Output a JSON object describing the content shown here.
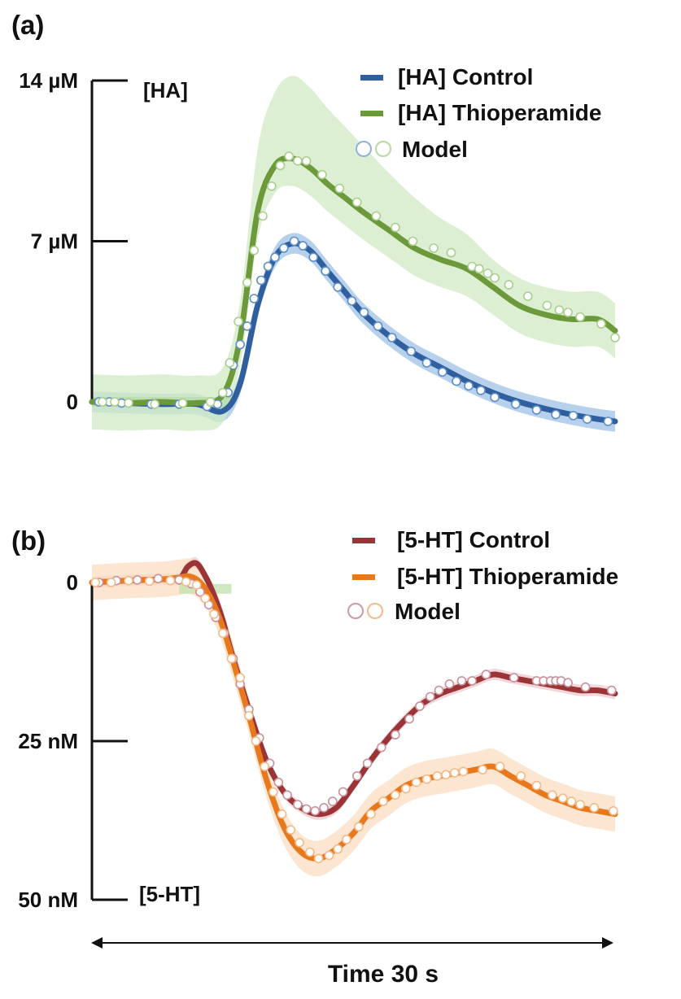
{
  "chart_data": [
    {
      "type": "line",
      "panel_label": "(a)",
      "ylabel": "[HA]",
      "yticks": [
        {
          "value": 14,
          "label": "14 µM"
        },
        {
          "value": 7,
          "label": "7 µM"
        },
        {
          "value": 0,
          "label": "0"
        }
      ],
      "ylim": [
        -1,
        14
      ],
      "xlim": [
        0,
        30
      ],
      "stim_bar": {
        "x": [
          0,
          8
        ],
        "y": 0,
        "color": "#b9dca6"
      },
      "legend": {
        "position": "top-right",
        "entries": [
          "[HA] Control",
          "[HA] Thioperamide",
          "Model"
        ]
      },
      "series": [
        {
          "name": "[HA] Control",
          "color": "#2f5f9e",
          "band_color": "#9fc1e6",
          "x": [
            0,
            2,
            4,
            6,
            7.5,
            8.5,
            9.5,
            10.5,
            11.5,
            12.5,
            13.5,
            14.5,
            15.5,
            17,
            18.5,
            20,
            21.5,
            23,
            24.5,
            26,
            27.5,
            29,
            30
          ],
          "y": [
            0,
            -0.05,
            -0.1,
            -0.1,
            -0.4,
            0.8,
            4.2,
            6.3,
            6.9,
            6.6,
            5.7,
            4.8,
            3.9,
            2.9,
            2.1,
            1.5,
            0.9,
            0.4,
            0,
            -0.3,
            -0.55,
            -0.75,
            -0.85
          ],
          "band_halfwidth": 0.45
        },
        {
          "name": "[HA] Thioperamide",
          "color": "#6c9a3a",
          "band_color": "#d2eac4",
          "x": [
            0,
            2,
            4,
            6,
            7.5,
            8.5,
            9.5,
            10.5,
            11.5,
            12.5,
            13.5,
            14.5,
            15.5,
            17,
            18.5,
            20,
            21.5,
            23,
            24.5,
            26,
            27.5,
            29,
            30
          ],
          "y": [
            0,
            -0.05,
            0,
            -0.05,
            0.3,
            2.8,
            8.3,
            10.3,
            10.6,
            10.2,
            9.5,
            8.9,
            8.3,
            7.5,
            6.7,
            6.2,
            5.8,
            5.0,
            4.2,
            3.8,
            3.6,
            3.6,
            3.1
          ],
          "band_halfwidth": 1.2,
          "band_top_extra": [
            0,
            0,
            0,
            0,
            0,
            0.4,
            1.5,
            2.0,
            2.4,
            2.3,
            2.1,
            1.9,
            1.7,
            1.3,
            1.0,
            0.6,
            0.3,
            0,
            0,
            0,
            0,
            0,
            0
          ]
        }
      ],
      "model_points": [
        {
          "series": "[HA] Control",
          "stroke": "#5d8ec8",
          "x": [
            0.4,
            1,
            1.7,
            3.4,
            5,
            6.6,
            7.2,
            7.8,
            8.1,
            8.5,
            8.9,
            9.3,
            9.7,
            10.1,
            10.5,
            11.0,
            11.6,
            12.1,
            12.7,
            13.4,
            14.1,
            14.9,
            15.6,
            16.4,
            17.2,
            18.3,
            19.2,
            20.1,
            20.9,
            21.6,
            22.3,
            23.1,
            24.3,
            25.5,
            26.6,
            27.6,
            28.4,
            29.6
          ],
          "y": [
            0,
            0,
            -0.05,
            -0.1,
            -0.1,
            -0.2,
            -0.1,
            0.4,
            1.6,
            2.5,
            3.3,
            4.5,
            5.3,
            5.9,
            6.3,
            6.7,
            7.0,
            6.8,
            6.3,
            5.7,
            5.0,
            4.4,
            3.9,
            3.3,
            2.8,
            2.2,
            1.7,
            1.3,
            0.9,
            0.7,
            0.5,
            0.2,
            -0.1,
            -0.35,
            -0.55,
            -0.6,
            -0.75,
            -0.85
          ]
        },
        {
          "series": "[HA] Thioperamide",
          "stroke": "#a9cf8f",
          "x": [
            0.6,
            1.3,
            2.1,
            3.6,
            5.2,
            6.8,
            7.5,
            7.9,
            8.4,
            8.9,
            9.3,
            9.8,
            10.3,
            10.8,
            11.3,
            11.8,
            12.3,
            13.2,
            14.2,
            15.2,
            16.3,
            17.4,
            18.4,
            19.6,
            20.6,
            21.8,
            22.2,
            22.7,
            23.1,
            23.9,
            25.0,
            26.1,
            26.8,
            27.3,
            28.0,
            29.2,
            30.0
          ],
          "y": [
            0,
            0,
            -0.05,
            -0.1,
            -0.05,
            0,
            0.4,
            1.7,
            3.5,
            5.2,
            6.6,
            8.1,
            9.4,
            10.3,
            10.7,
            10.5,
            10.5,
            9.9,
            9.3,
            8.7,
            8.1,
            7.6,
            7.0,
            6.7,
            6.5,
            5.9,
            5.8,
            5.6,
            5.4,
            5.1,
            4.6,
            4.2,
            4.0,
            3.9,
            3.7,
            3.4,
            2.8
          ]
        }
      ]
    },
    {
      "type": "line",
      "panel_label": "(b)",
      "ylabel": "[5-HT]",
      "yticks": [
        {
          "value": 0,
          "label": "0"
        },
        {
          "value": 25,
          "label": "25 nM"
        },
        {
          "value": 50,
          "label": "50 nM"
        }
      ],
      "ylim": [
        -3,
        50
      ],
      "y_inverted": true,
      "xlim": [
        0,
        30
      ],
      "stim_bar": {
        "x": [
          5,
          8
        ],
        "y": 1,
        "color": "#c4e2b2"
      },
      "legend": {
        "position": "top-right",
        "entries": [
          "[5-HT] Control",
          "[5-HT] Thioperamide",
          "Model"
        ]
      },
      "series": [
        {
          "name": "[5-HT] Control",
          "color": "#9b3437",
          "band_color": "#ecc9ce",
          "x": [
            0,
            2,
            4,
            5,
            5.5,
            6,
            6.5,
            7,
            7.5,
            8,
            9,
            10,
            11,
            12,
            13,
            14,
            15,
            16,
            17,
            18,
            19,
            20,
            21,
            22,
            23,
            24,
            25,
            26,
            27,
            28,
            29,
            30
          ],
          "y": [
            0,
            -0.3,
            -0.5,
            -0.6,
            -2.5,
            -3.0,
            -1.0,
            2.0,
            6.0,
            11.0,
            20.0,
            28.0,
            33.0,
            35.5,
            36.5,
            35.5,
            32.0,
            28.0,
            24.5,
            21.5,
            19.0,
            17.5,
            16.5,
            15.5,
            14.5,
            15.0,
            15.5,
            16.0,
            16.5,
            17.0,
            17.0,
            17.5
          ],
          "band_halfwidth": 0.9
        },
        {
          "name": "[5-HT] Thioperamide",
          "color": "#e8781c",
          "band_color": "#fbdcc2",
          "x": [
            0,
            2,
            4,
            5,
            5.5,
            6,
            6.5,
            7,
            7.5,
            8,
            9,
            10,
            11,
            12,
            13,
            14,
            15,
            16,
            17,
            18,
            19,
            20,
            21,
            22,
            23,
            24,
            25,
            26,
            27,
            28,
            29,
            30
          ],
          "y": [
            0,
            -0.3,
            -0.5,
            -0.8,
            -1.0,
            -0.5,
            1.0,
            3.5,
            7.0,
            11.5,
            21.0,
            31.0,
            38.5,
            42.5,
            43.5,
            42.0,
            39.5,
            36.0,
            34.0,
            32.0,
            31.0,
            30.5,
            30.0,
            29.5,
            29.0,
            30.5,
            32.0,
            33.5,
            34.5,
            35.5,
            36.0,
            36.5
          ],
          "band_halfwidth": 2.8
        }
      ],
      "model_points": [
        {
          "series": "[5-HT] Control",
          "stroke": "#c9909a",
          "x": [
            0.4,
            1.4,
            2.6,
            3.8,
            5.0,
            5.7,
            6.2,
            6.7,
            7.1,
            7.6,
            8.1,
            8.5,
            9.0,
            9.6,
            10.2,
            10.7,
            11.2,
            11.8,
            12.3,
            12.8,
            13.3,
            13.8,
            14.4,
            15.2,
            15.8,
            16.6,
            17.4,
            18.2,
            18.8,
            19.4,
            19.9,
            20.5,
            21.2,
            21.8,
            22.6,
            24.2,
            25.5,
            25.9,
            26.3,
            26.6,
            26.9,
            27.3,
            28.3,
            29.8
          ],
          "y": [
            0,
            -0.3,
            -0.4,
            -0.6,
            -0.4,
            0.2,
            1.5,
            3.5,
            5.5,
            8.0,
            12.0,
            16.0,
            20.0,
            24.5,
            28.5,
            31.5,
            33.5,
            35.0,
            35.7,
            36.0,
            35.5,
            34.5,
            33.0,
            30.5,
            28.5,
            26.0,
            24.0,
            21.5,
            19.5,
            18.0,
            17.0,
            16.0,
            15.5,
            15.5,
            14.5,
            15.0,
            15.5,
            15.5,
            15.5,
            15.5,
            15.5,
            15.8,
            16.5,
            17.0
          ]
        },
        {
          "series": "[5-HT] Thioperamide",
          "stroke": "#f4ba86",
          "x": [
            0.2,
            1.1,
            2.1,
            3.3,
            4.5,
            5.4,
            6.0,
            6.5,
            7.0,
            7.5,
            8.0,
            8.5,
            9.0,
            9.4,
            9.9,
            10.4,
            10.9,
            11.4,
            11.9,
            12.5,
            13.0,
            13.6,
            14.1,
            14.6,
            15.3,
            16.0,
            16.7,
            17.4,
            18.0,
            18.6,
            19.2,
            19.8,
            20.3,
            20.8,
            21.3,
            22.4,
            23.4,
            24.6,
            25.5,
            26.4,
            27.0,
            27.5,
            28.0,
            28.8,
            29.9
          ],
          "y": [
            0,
            0,
            -0.3,
            -0.2,
            -0.3,
            -0.1,
            0.4,
            2.5,
            5.0,
            8.0,
            12.0,
            15.0,
            21.0,
            25.0,
            29.0,
            33.0,
            36.5,
            39.0,
            41.0,
            42.5,
            43.5,
            43.0,
            42.0,
            40.5,
            38.5,
            36.5,
            34.5,
            33.5,
            32.5,
            31.5,
            31.0,
            30.5,
            30.3,
            30.0,
            29.8,
            29.5,
            29.0,
            30.5,
            32.0,
            33.5,
            34.0,
            34.5,
            35.0,
            35.5,
            36.0
          ]
        }
      ]
    }
  ],
  "x_axis": {
    "label": "Time 30 s"
  }
}
